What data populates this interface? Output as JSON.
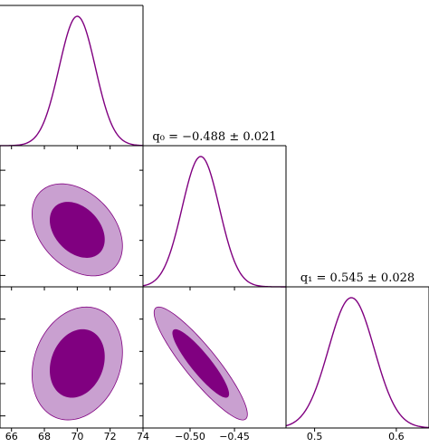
{
  "chart_data": {
    "type": "corner",
    "color_main": "#800080",
    "color_fill_inner": "#800080",
    "color_fill_outer": "#c9a0d0",
    "parameters": [
      {
        "key": "H0",
        "mean": 70.0,
        "sigma": 1.1,
        "range": [
          65.3,
          74.0
        ],
        "ticks": [
          66,
          68,
          70,
          72,
          74
        ],
        "title": ""
      },
      {
        "key": "q0",
        "mean": -0.488,
        "sigma": 0.021,
        "range": [
          -0.553,
          -0.392
        ],
        "ticks": [
          -0.5,
          -0.45
        ],
        "tick_labels": [
          "−0.50",
          "−0.45"
        ],
        "title": "q₀ = −0.488 ± 0.021"
      },
      {
        "key": "q1",
        "mean": 0.545,
        "sigma": 0.028,
        "range": [
          0.465,
          0.64
        ],
        "ticks": [
          0.5,
          0.6
        ],
        "tick_labels": [
          "0.5",
          "0.6"
        ],
        "title": "q₁ = 0.545 ± 0.028"
      }
    ],
    "correlations": [
      {
        "row": 1,
        "col": 0,
        "rho": -0.35
      },
      {
        "row": 2,
        "col": 0,
        "rho": 0.2
      },
      {
        "row": 2,
        "col": 1,
        "rho": -0.9
      }
    ],
    "contour_levels_sigma": [
      1.5,
      2.5
    ]
  }
}
